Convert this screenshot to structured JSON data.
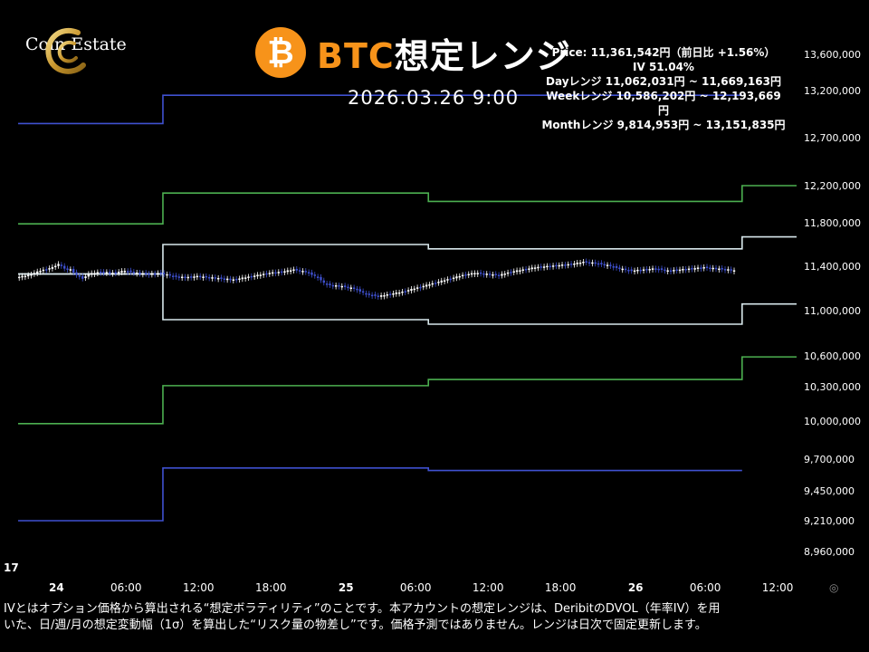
{
  "logo": {
    "text": "Coin Estate"
  },
  "header": {
    "coin_symbol": "₿",
    "title_accent": "BTC",
    "title_rest": "想定レンジ",
    "datetime": "2026.03.26 9:00"
  },
  "info": {
    "price": "Price: 11,361,542円（前日比 +1.56%）",
    "iv": "IV 51.04%",
    "day_range": "Dayレンジ  11,062,031円 ~ 11,669,163円",
    "week_range": "Weekレンジ 10,586,202円 ~ 12,193,669円",
    "month_range": "Monthレンジ 9,814,953円 ~ 13,151,835円"
  },
  "footer": {
    "line1": "IVとはオプション価格から算出される“想定ボラティリティ”のことです。本アカウントの想定レンジは、DeribitのDVOL（年率IV）を用",
    "line2": "いた、日/週/月の想定変動幅（1σ）を算出した“リスク量の物差し”です。価格予測ではありません。レンジは日次で固定更新します。"
  },
  "tv_logo": "17",
  "colors": {
    "background": "#000000",
    "accent": "#f7931a",
    "day_band": "#d8e8ec",
    "week_band": "#4caf50",
    "month_band": "#3f51d0",
    "candle_up": "#ffffff",
    "candle_down": "#3f51d0",
    "axis_text": "#ffffff"
  },
  "chart_data": {
    "type": "line",
    "x_unit": "hours since 24th 00:00",
    "x_ticks": [
      {
        "x": 0,
        "label": "24"
      },
      {
        "x": 6,
        "label": "06:00"
      },
      {
        "x": 12,
        "label": "12:00"
      },
      {
        "x": 18,
        "label": "18:00"
      },
      {
        "x": 24,
        "label": "25"
      },
      {
        "x": 30,
        "label": "06:00"
      },
      {
        "x": 36,
        "label": "12:00"
      },
      {
        "x": 42,
        "label": "18:00"
      },
      {
        "x": 48,
        "label": "26"
      },
      {
        "x": 54,
        "label": "06:00"
      },
      {
        "x": 60,
        "label": "12:00"
      }
    ],
    "y_ticks": [
      {
        "v": 13600000,
        "label": "13,600,000"
      },
      {
        "v": 13200000,
        "label": "13,200,000"
      },
      {
        "v": 12700000,
        "label": "12,700,000"
      },
      {
        "v": 12200000,
        "label": "12,200,000"
      },
      {
        "v": 11800000,
        "label": "11,800,000"
      },
      {
        "v": 11400000,
        "label": "11,400,000"
      },
      {
        "v": 11000000,
        "label": "11,000,000"
      },
      {
        "v": 10600000,
        "label": "10,600,000"
      },
      {
        "v": 10300000,
        "label": "10,300,000"
      },
      {
        "v": 10000000,
        "label": "10,000,000"
      },
      {
        "v": 9700000,
        "label": "9,700,000"
      },
      {
        "v": 9450000,
        "label": "9,450,000"
      },
      {
        "v": 9210000,
        "label": "9,210,000"
      },
      {
        "v": 8960000,
        "label": "8,960,000"
      }
    ],
    "bands": [
      {
        "kind": "month",
        "segments": [
          {
            "x0": -3,
            "x1": 9,
            "upper": 12850000,
            "lower": 9210000
          },
          {
            "x0": 9,
            "x1": 31,
            "upper": 13150000,
            "lower": 9630000
          },
          {
            "x0": 31,
            "x1": 57,
            "upper": 13150000,
            "lower": 9610000
          }
        ]
      },
      {
        "kind": "week",
        "segments": [
          {
            "x0": -3,
            "x1": 9,
            "upper": 11790000,
            "lower": 9980000
          },
          {
            "x0": 9,
            "x1": 31,
            "upper": 12120000,
            "lower": 10310000
          },
          {
            "x0": 31,
            "x1": 57,
            "upper": 12030000,
            "lower": 10370000
          },
          {
            "x0": 57,
            "x1": 62,
            "upper": 12200000,
            "lower": 10590000
          }
        ]
      },
      {
        "kind": "day",
        "segments": [
          {
            "x0": -3,
            "x1": 9,
            "upper": 11330000,
            "lower": 11330000
          },
          {
            "x0": 9,
            "x1": 31,
            "upper": 11600000,
            "lower": 10920000
          },
          {
            "x0": 31,
            "x1": 57,
            "upper": 11560000,
            "lower": 10880000
          },
          {
            "x0": 57,
            "x1": 62,
            "upper": 11670000,
            "lower": 11060000
          }
        ]
      }
    ],
    "price": [
      [
        -3,
        11300000
      ],
      [
        -2,
        11320000
      ],
      [
        -1,
        11360000
      ],
      [
        0,
        11390000
      ],
      [
        0.5,
        11420000
      ],
      [
        1,
        11380000
      ],
      [
        1.5,
        11370000
      ],
      [
        2,
        11320000
      ],
      [
        2.5,
        11290000
      ],
      [
        3,
        11330000
      ],
      [
        4,
        11350000
      ],
      [
        5,
        11340000
      ],
      [
        6,
        11360000
      ],
      [
        7,
        11340000
      ],
      [
        8,
        11330000
      ],
      [
        9,
        11340000
      ],
      [
        10,
        11310000
      ],
      [
        11,
        11300000
      ],
      [
        12,
        11310000
      ],
      [
        13,
        11300000
      ],
      [
        14,
        11290000
      ],
      [
        15,
        11280000
      ],
      [
        16,
        11300000
      ],
      [
        17,
        11320000
      ],
      [
        18,
        11340000
      ],
      [
        19,
        11350000
      ],
      [
        20,
        11370000
      ],
      [
        21,
        11350000
      ],
      [
        22,
        11300000
      ],
      [
        22.5,
        11250000
      ],
      [
        23,
        11230000
      ],
      [
        24,
        11220000
      ],
      [
        25,
        11200000
      ],
      [
        26,
        11150000
      ],
      [
        27,
        11130000
      ],
      [
        28,
        11150000
      ],
      [
        29,
        11170000
      ],
      [
        30,
        11200000
      ],
      [
        31,
        11230000
      ],
      [
        32,
        11260000
      ],
      [
        33,
        11290000
      ],
      [
        34,
        11320000
      ],
      [
        35,
        11340000
      ],
      [
        36,
        11330000
      ],
      [
        37,
        11320000
      ],
      [
        38,
        11350000
      ],
      [
        39,
        11370000
      ],
      [
        40,
        11390000
      ],
      [
        41,
        11400000
      ],
      [
        42,
        11410000
      ],
      [
        43,
        11420000
      ],
      [
        44,
        11440000
      ],
      [
        45,
        11430000
      ],
      [
        46,
        11410000
      ],
      [
        47,
        11380000
      ],
      [
        48,
        11360000
      ],
      [
        49,
        11370000
      ],
      [
        50,
        11380000
      ],
      [
        51,
        11360000
      ],
      [
        52,
        11370000
      ],
      [
        53,
        11380000
      ],
      [
        54,
        11390000
      ],
      [
        55,
        11380000
      ],
      [
        56,
        11370000
      ],
      [
        56.5,
        11362000
      ]
    ]
  }
}
